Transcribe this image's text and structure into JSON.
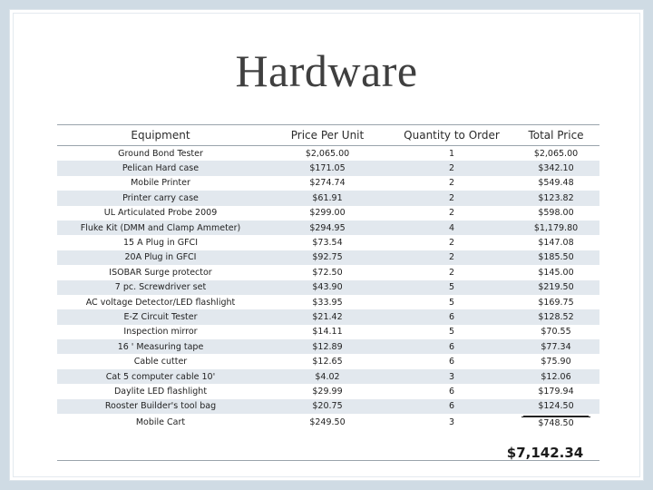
{
  "title": "Hardware",
  "headers": [
    "Equipment",
    "Price Per Unit",
    "Quantity to Order",
    "Total Price"
  ],
  "rows": [
    [
      "Ground Bond Tester",
      "$2,065.00",
      "1",
      "$2,065.00"
    ],
    [
      "Pelican Hard case",
      "$171.05",
      "2",
      "$342.10"
    ],
    [
      "Mobile Printer",
      "$274.74",
      "2",
      "$549.48"
    ],
    [
      "Printer carry case",
      "$61.91",
      "2",
      "$123.82"
    ],
    [
      "UL Articulated Probe 2009",
      "$299.00",
      "2",
      "$598.00"
    ],
    [
      "Fluke Kit (DMM and Clamp Ammeter)",
      "$294.95",
      "4",
      "$1,179.80"
    ],
    [
      "15 A Plug in GFCI",
      "$73.54",
      "2",
      "$147.08"
    ],
    [
      "20A Plug in GFCI",
      "$92.75",
      "2",
      "$185.50"
    ],
    [
      "ISOBAR Surge protector",
      "$72.50",
      "2",
      "$145.00"
    ],
    [
      "7 pc. Screwdriver set",
      "$43.90",
      "5",
      "$219.50"
    ],
    [
      "AC voltage Detector/LED flashlight",
      "$33.95",
      "5",
      "$169.75"
    ],
    [
      "E-Z Circuit Tester",
      "$21.42",
      "6",
      "$128.52"
    ],
    [
      "Inspection mirror",
      "$14.11",
      "5",
      "$70.55"
    ],
    [
      "16 ' Measuring tape",
      "$12.89",
      "6",
      "$77.34"
    ],
    [
      "Cable cutter",
      "$12.65",
      "6",
      "$75.90"
    ],
    [
      "Cat 5 computer cable 10'",
      "$4.02",
      "3",
      "$12.06"
    ],
    [
      "Daylite LED flashlight",
      "$29.99",
      "6",
      "$179.94"
    ],
    [
      "Rooster Builder's tool bag",
      "$20.75",
      "6",
      "$124.50"
    ],
    [
      "Mobile Cart",
      "$249.50",
      "3",
      "$748.50"
    ]
  ],
  "grand_total": "$7,142.34"
}
